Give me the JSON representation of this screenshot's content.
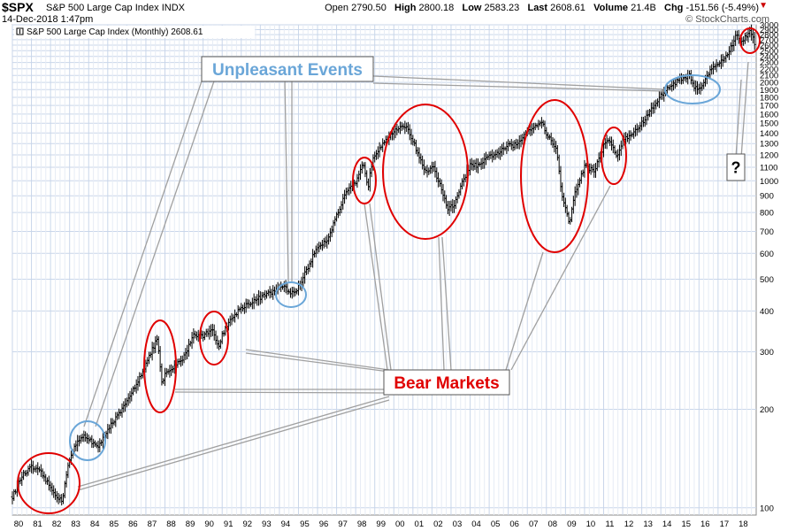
{
  "header": {
    "symbol": "$SPX",
    "index_name": "S&P 500 Large Cap Index",
    "exchange": "INDX",
    "date": "14-Dec-2018 1:47pm",
    "watermark": "© StockCharts.com",
    "open_label": "Open",
    "open": "2790.50",
    "high_label": "High",
    "high": "2800.18",
    "low_label": "Low",
    "low": "2583.23",
    "last_label": "Last",
    "last": "2608.61",
    "volume_label": "Volume",
    "volume": "21.4B",
    "chg_label": "Chg",
    "chg": "-151.56 (-5.49%)"
  },
  "legend": "S&P 500 Large Cap Index (Monthly) 2608.61",
  "annotations": {
    "unpleasant_events": "Unpleasant Events",
    "bear_markets": "Bear Markets",
    "question": "?"
  },
  "colors": {
    "grid": "#c9d6ea",
    "bars": "#000000",
    "bear_circle": "#e00000",
    "event_circle": "#6aa6d8",
    "event_text": "#6aa6d8",
    "bear_text": "#e00000"
  },
  "chart_data": {
    "type": "ohlc",
    "scale": "log",
    "ylim": [
      95,
      3000
    ],
    "xlim": [
      "1980",
      "2019"
    ],
    "x_tick_labels": [
      "80",
      "81",
      "82",
      "83",
      "84",
      "85",
      "86",
      "87",
      "88",
      "89",
      "90",
      "91",
      "92",
      "93",
      "94",
      "95",
      "96",
      "97",
      "98",
      "99",
      "00",
      "01",
      "02",
      "03",
      "04",
      "05",
      "06",
      "07",
      "08",
      "09",
      "10",
      "11",
      "12",
      "13",
      "14",
      "15",
      "16",
      "17",
      "18"
    ],
    "y_ticks": [
      100,
      200,
      300,
      400,
      500,
      600,
      700,
      800,
      900,
      1000,
      1100,
      1200,
      1300,
      1400,
      1500,
      1600,
      1700,
      1800,
      1900,
      2000,
      2100,
      2200,
      2300,
      2400,
      2500,
      2600,
      2700,
      2800,
      2900,
      3000
    ],
    "series": [
      {
        "values": [
          [
            1980.0,
            108
          ],
          [
            1980.5,
            125
          ],
          [
            1981.0,
            133
          ],
          [
            1981.5,
            128
          ],
          [
            1982.0,
            115
          ],
          [
            1982.6,
            104
          ],
          [
            1982.9,
            135
          ],
          [
            1983.3,
            155
          ],
          [
            1983.7,
            166
          ],
          [
            1984.0,
            163
          ],
          [
            1984.5,
            152
          ],
          [
            1985.0,
            175
          ],
          [
            1985.5,
            190
          ],
          [
            1986.0,
            210
          ],
          [
            1986.5,
            240
          ],
          [
            1987.0,
            275
          ],
          [
            1987.6,
            330
          ],
          [
            1987.85,
            235
          ],
          [
            1988.0,
            255
          ],
          [
            1988.5,
            270
          ],
          [
            1989.0,
            290
          ],
          [
            1989.5,
            340
          ],
          [
            1990.0,
            335
          ],
          [
            1990.5,
            355
          ],
          [
            1990.8,
            305
          ],
          [
            1991.0,
            340
          ],
          [
            1991.5,
            380
          ],
          [
            1992.0,
            410
          ],
          [
            1993.0,
            440
          ],
          [
            1993.9,
            465
          ],
          [
            1994.2,
            480
          ],
          [
            1994.5,
            455
          ],
          [
            1994.9,
            460
          ],
          [
            1995.5,
            545
          ],
          [
            1996.0,
            630
          ],
          [
            1996.5,
            660
          ],
          [
            1997.0,
            780
          ],
          [
            1997.5,
            920
          ],
          [
            1998.0,
            980
          ],
          [
            1998.4,
            1130
          ],
          [
            1998.65,
            960
          ],
          [
            1998.9,
            1180
          ],
          [
            1999.5,
            1330
          ],
          [
            2000.0,
            1420
          ],
          [
            2000.7,
            1470
          ],
          [
            2001.0,
            1320
          ],
          [
            2001.3,
            1200
          ],
          [
            2001.7,
            1050
          ],
          [
            2002.0,
            1120
          ],
          [
            2002.5,
            950
          ],
          [
            2002.8,
            815
          ],
          [
            2003.2,
            850
          ],
          [
            2003.6,
            990
          ],
          [
            2004.0,
            1120
          ],
          [
            2004.5,
            1110
          ],
          [
            2005.0,
            1190
          ],
          [
            2005.5,
            1220
          ],
          [
            2006.0,
            1280
          ],
          [
            2006.5,
            1290
          ],
          [
            2007.0,
            1430
          ],
          [
            2007.8,
            1520
          ],
          [
            2008.0,
            1380
          ],
          [
            2008.5,
            1270
          ],
          [
            2008.8,
            920
          ],
          [
            2009.2,
            735
          ],
          [
            2009.5,
            920
          ],
          [
            2010.0,
            1110
          ],
          [
            2010.5,
            1070
          ],
          [
            2011.0,
            1280
          ],
          [
            2011.3,
            1340
          ],
          [
            2011.7,
            1180
          ],
          [
            2012.0,
            1330
          ],
          [
            2012.5,
            1390
          ],
          [
            2013.0,
            1500
          ],
          [
            2013.5,
            1650
          ],
          [
            2014.0,
            1820
          ],
          [
            2014.5,
            1950
          ],
          [
            2015.0,
            2050
          ],
          [
            2015.5,
            2090
          ],
          [
            2015.75,
            1930
          ],
          [
            2016.1,
            1940
          ],
          [
            2016.5,
            2140
          ],
          [
            2017.0,
            2280
          ],
          [
            2017.5,
            2440
          ],
          [
            2018.0,
            2810
          ],
          [
            2018.2,
            2640
          ],
          [
            2018.7,
            2900
          ],
          [
            2018.95,
            2610
          ]
        ]
      }
    ]
  }
}
